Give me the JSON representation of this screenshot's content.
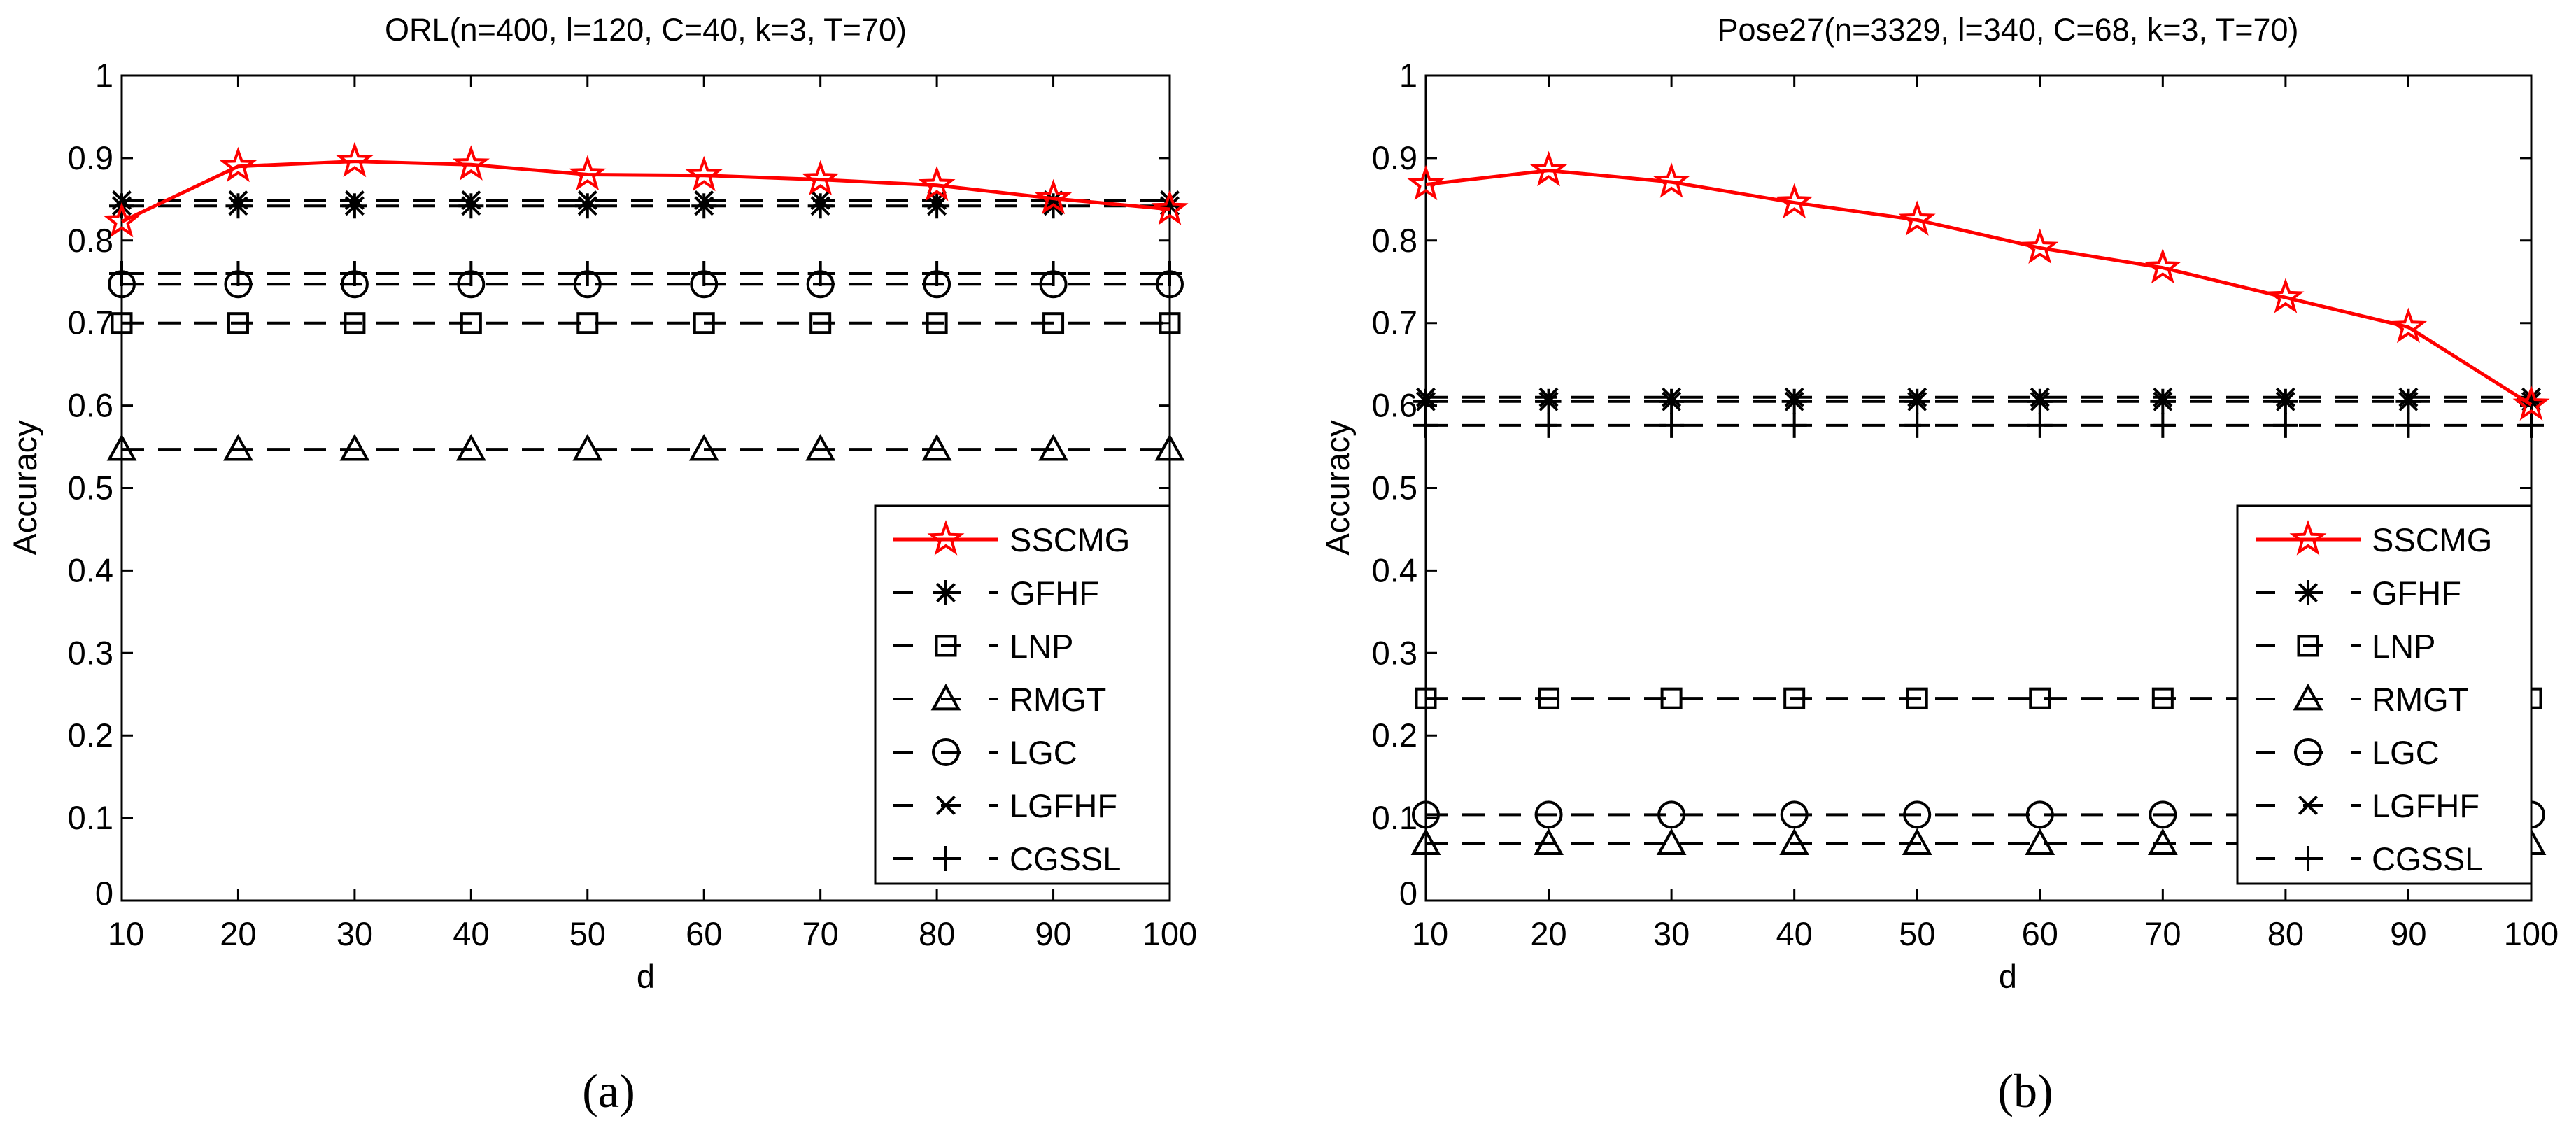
{
  "chart_data": [
    {
      "type": "line",
      "panel_label": "(a)",
      "title": "ORL(n=400, l=120, C=40, k=3, T=70)",
      "xlabel": "d",
      "ylabel": "Accuracy",
      "x": [
        10,
        20,
        30,
        40,
        50,
        60,
        70,
        80,
        90,
        100
      ],
      "xlim": [
        10,
        100
      ],
      "ylim": [
        0,
        1
      ],
      "xticks": [
        "10",
        "20",
        "30",
        "40",
        "50",
        "60",
        "70",
        "80",
        "90",
        "100"
      ],
      "yticks": [
        "0",
        "0.1",
        "0.2",
        "0.3",
        "0.4",
        "0.5",
        "0.6",
        "0.7",
        "0.8",
        "0.9",
        "1"
      ],
      "grid": false,
      "legend_position": "bottom-right",
      "series": [
        {
          "name": "SSCMG",
          "marker": "star",
          "style": "solid",
          "color": "#ff0000",
          "values": [
            0.823,
            0.89,
            0.896,
            0.892,
            0.88,
            0.879,
            0.874,
            0.867,
            0.851,
            0.838
          ]
        },
        {
          "name": "GFHF",
          "marker": "asterisk",
          "style": "dashed",
          "color": "#000000",
          "values": [
            0.842,
            0.842,
            0.842,
            0.842,
            0.842,
            0.842,
            0.842,
            0.842,
            0.842,
            0.842
          ]
        },
        {
          "name": "LNP",
          "marker": "square",
          "style": "dashed",
          "color": "#000000",
          "values": [
            0.7,
            0.7,
            0.7,
            0.7,
            0.7,
            0.7,
            0.7,
            0.7,
            0.7,
            0.7
          ]
        },
        {
          "name": "RMGT",
          "marker": "triangle",
          "style": "dashed",
          "color": "#000000",
          "values": [
            0.547,
            0.547,
            0.547,
            0.547,
            0.547,
            0.547,
            0.547,
            0.547,
            0.547,
            0.547
          ]
        },
        {
          "name": "LGC",
          "marker": "circle",
          "style": "dashed",
          "color": "#000000",
          "values": [
            0.747,
            0.747,
            0.747,
            0.747,
            0.747,
            0.747,
            0.747,
            0.747,
            0.747,
            0.747
          ]
        },
        {
          "name": "LGFHF",
          "marker": "x",
          "style": "dashed",
          "color": "#000000",
          "values": [
            0.849,
            0.849,
            0.849,
            0.849,
            0.849,
            0.849,
            0.849,
            0.849,
            0.849,
            0.849
          ]
        },
        {
          "name": "CGSSL",
          "marker": "plus",
          "style": "dashed",
          "color": "#000000",
          "values": [
            0.76,
            0.76,
            0.76,
            0.76,
            0.76,
            0.76,
            0.76,
            0.76,
            0.76,
            0.76
          ]
        }
      ]
    },
    {
      "type": "line",
      "panel_label": "(b)",
      "title": "Pose27(n=3329, l=340, C=68, k=3, T=70)",
      "xlabel": "d",
      "ylabel": "Accuracy",
      "x": [
        10,
        20,
        30,
        40,
        50,
        60,
        70,
        80,
        90,
        100
      ],
      "xlim": [
        10,
        100
      ],
      "ylim": [
        0,
        1
      ],
      "xticks": [
        "10",
        "20",
        "30",
        "40",
        "50",
        "60",
        "70",
        "80",
        "90",
        "100"
      ],
      "yticks": [
        "0",
        "0.1",
        "0.2",
        "0.3",
        "0.4",
        "0.5",
        "0.6",
        "0.7",
        "0.8",
        "0.9",
        "1"
      ],
      "grid": false,
      "legend_position": "bottom-right",
      "series": [
        {
          "name": "SSCMG",
          "marker": "star",
          "style": "solid",
          "color": "#ff0000",
          "values": [
            0.868,
            0.885,
            0.871,
            0.846,
            0.825,
            0.791,
            0.767,
            0.731,
            0.695,
            0.601
          ]
        },
        {
          "name": "GFHF",
          "marker": "asterisk",
          "style": "dashed",
          "color": "#000000",
          "values": [
            0.605,
            0.605,
            0.605,
            0.605,
            0.605,
            0.605,
            0.605,
            0.605,
            0.605,
            0.605
          ]
        },
        {
          "name": "LNP",
          "marker": "square",
          "style": "dashed",
          "color": "#000000",
          "values": [
            0.245,
            0.245,
            0.245,
            0.245,
            0.245,
            0.245,
            0.245,
            0.245,
            0.245,
            0.245
          ]
        },
        {
          "name": "RMGT",
          "marker": "triangle",
          "style": "dashed",
          "color": "#000000",
          "values": [
            0.069,
            0.069,
            0.069,
            0.069,
            0.069,
            0.069,
            0.069,
            0.069,
            0.069,
            0.069
          ]
        },
        {
          "name": "LGC",
          "marker": "circle",
          "style": "dashed",
          "color": "#000000",
          "values": [
            0.104,
            0.104,
            0.104,
            0.104,
            0.104,
            0.104,
            0.104,
            0.104,
            0.104,
            0.104
          ]
        },
        {
          "name": "LGFHF",
          "marker": "x",
          "style": "dashed",
          "color": "#000000",
          "values": [
            0.61,
            0.61,
            0.61,
            0.61,
            0.61,
            0.61,
            0.61,
            0.61,
            0.61,
            0.61
          ]
        },
        {
          "name": "CGSSL",
          "marker": "plus",
          "style": "dashed",
          "color": "#000000",
          "values": [
            0.576,
            0.576,
            0.576,
            0.576,
            0.576,
            0.576,
            0.576,
            0.576,
            0.576,
            0.576
          ]
        }
      ]
    }
  ]
}
